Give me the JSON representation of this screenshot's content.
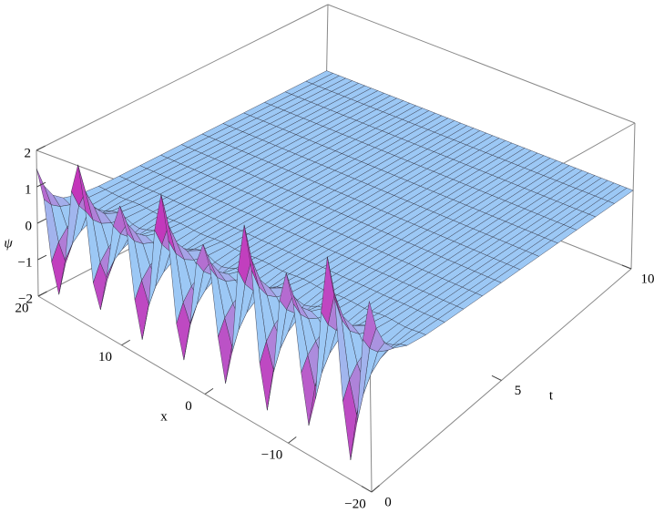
{
  "chart_data": {
    "type": "surface3d",
    "xlabel": "x",
    "ylabel": "t",
    "zlabel": "ψ",
    "xlim": [
      -20,
      20
    ],
    "xticks": [
      {
        "value": -20,
        "label": "−20"
      },
      {
        "value": -10,
        "label": "−10"
      },
      0,
      10,
      20
    ],
    "ylim": [
      0,
      10
    ],
    "yticks": [
      0,
      5,
      10
    ],
    "zlim": [
      -2,
      2
    ],
    "zticks": [
      {
        "value": -2,
        "label": "−2"
      },
      {
        "value": -1,
        "label": "−1"
      },
      0,
      1,
      2
    ],
    "color": "#9cc8f5"
  }
}
